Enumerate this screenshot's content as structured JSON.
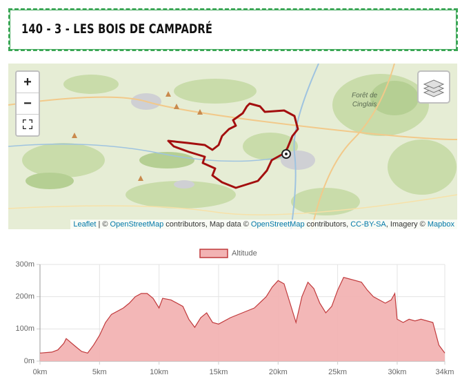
{
  "header": {
    "title": "140 - 3 - LES BOIS DE CAMPADRÉ"
  },
  "map": {
    "zoom_in": "+",
    "zoom_out": "−",
    "place_label": [
      "Forêt de",
      "Cinglais"
    ],
    "attribution": [
      "Leaflet",
      " | © ",
      "OpenStreetMap",
      " contributors, Map data © ",
      "OpenStreetMap",
      " contributors, ",
      "CC-BY-SA",
      ", Imagery © ",
      "Mapbox"
    ]
  },
  "chart_data": {
    "type": "area",
    "series": [
      {
        "name": "Altitude",
        "color": "#c0393b",
        "fill": "#f2b3b3",
        "x": [
          0,
          1,
          1.5,
          2,
          2.2,
          3,
          3.5,
          4,
          4.5,
          5,
          5.5,
          6,
          7,
          7.5,
          8,
          8.5,
          9,
          9.5,
          10,
          10.3,
          11,
          12,
          12.5,
          13,
          13.5,
          14,
          14.5,
          15,
          16,
          17,
          18,
          19,
          19.5,
          20,
          20.5,
          21,
          21.5,
          22,
          22.5,
          23,
          23.5,
          24,
          24.5,
          25,
          25.5,
          26,
          27,
          27.5,
          28,
          29,
          29.5,
          29.8,
          30,
          30.5,
          31,
          31.5,
          32,
          33,
          33.5,
          34
        ],
        "values": [
          25,
          28,
          35,
          55,
          70,
          45,
          30,
          25,
          50,
          80,
          120,
          145,
          165,
          180,
          200,
          210,
          210,
          195,
          165,
          195,
          190,
          170,
          130,
          105,
          135,
          150,
          120,
          115,
          135,
          150,
          165,
          200,
          230,
          250,
          240,
          180,
          120,
          200,
          245,
          225,
          180,
          150,
          170,
          220,
          260,
          255,
          245,
          220,
          200,
          180,
          190,
          210,
          130,
          120,
          130,
          125,
          130,
          120,
          50,
          25
        ]
      }
    ],
    "xlim": [
      0,
      34
    ],
    "ylim": [
      0,
      300
    ],
    "xticks": [
      {
        "value": 0,
        "label": "0km"
      },
      {
        "value": 5,
        "label": "5km"
      },
      {
        "value": 10,
        "label": "10km"
      },
      {
        "value": 15,
        "label": "15km"
      },
      {
        "value": 20,
        "label": "20km"
      },
      {
        "value": 25,
        "label": "25km"
      },
      {
        "value": 30,
        "label": "30km"
      },
      {
        "value": 34,
        "label": "34km"
      }
    ],
    "yticks": [
      {
        "value": 0,
        "label": "0m"
      },
      {
        "value": 100,
        "label": "100m"
      },
      {
        "value": 200,
        "label": "200m"
      },
      {
        "value": 300,
        "label": "300m"
      }
    ],
    "grid": true,
    "legend": "top"
  }
}
